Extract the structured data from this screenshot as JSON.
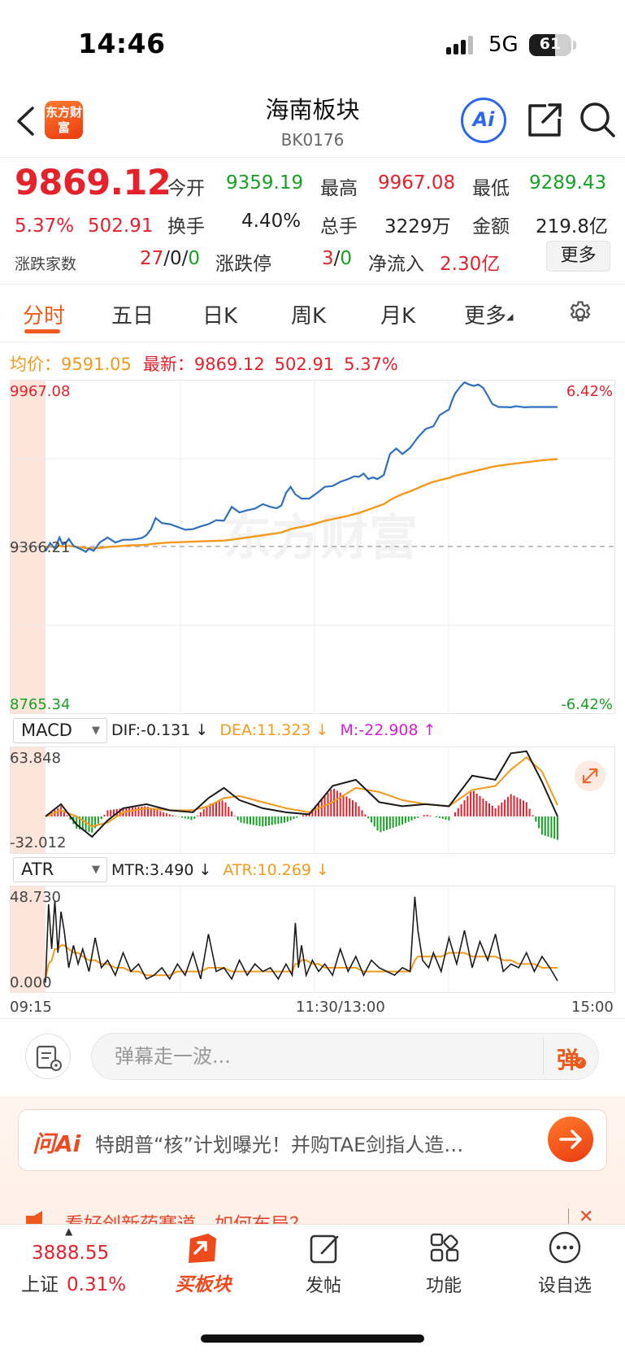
{
  "status_bar": {
    "time": "14:46",
    "network": "5G",
    "battery": "61",
    "battery_level": 0.61
  },
  "header": {
    "title": "海南板块",
    "code": "BK0176",
    "logo_text": "东方财富",
    "ai_label": "Ai"
  },
  "quote": {
    "price": "9869.12",
    "change_pct": "5.37%",
    "change": "502.91",
    "open_label": "今开",
    "open": "9359.19",
    "high_label": "最高",
    "high": "9967.08",
    "low_label": "最低",
    "low": "9289.43",
    "turnover_label": "换手",
    "turnover": "4.40%",
    "volume_label": "总手",
    "volume": "3229万",
    "amount_label": "金额",
    "amount": "219.8亿",
    "breadth_label": "涨跌家数",
    "breadth_up": "27",
    "breadth_flat": "0",
    "breadth_down": "0",
    "sep": "/",
    "limit_label": "涨跌停",
    "limit_up": "3",
    "limit_down": "0",
    "netflow_label": "净流入",
    "netflow": "2.30亿",
    "more_label": "更多"
  },
  "tabs": [
    {
      "label": "分时",
      "active": true
    },
    {
      "label": "五日"
    },
    {
      "label": "日K"
    },
    {
      "label": "周K"
    },
    {
      "label": "月K"
    },
    {
      "label": "更多"
    }
  ],
  "legend": {
    "avg_label": "均价：",
    "avg": "9591.05",
    "last_label": "最新：",
    "last": "9869.12",
    "last_change": "502.91",
    "last_pct": "5.37%"
  },
  "chart_data": [
    {
      "type": "line",
      "title": "",
      "xlabel": "",
      "ylabel": "",
      "x_ticks": [
        "09:15",
        "11:30/13:00",
        "15:00"
      ],
      "y_max_label": "9967.08",
      "y_min_label": "8765.34",
      "y_ref_label": "9366.21",
      "pct_max_label": "6.42%",
      "pct_min_label": "-6.42%",
      "ylim": [
        8765.34,
        9967.08
      ],
      "reference": 9366.21,
      "watermark": "东方财富",
      "x": [
        0,
        6,
        12,
        18,
        22,
        26,
        30,
        36,
        42,
        48,
        52,
        56,
        62,
        70,
        80,
        90,
        100,
        110,
        118,
        124,
        130,
        136,
        142,
        150,
        160,
        170,
        180,
        190,
        200,
        210,
        220,
        230,
        240,
        250,
        260,
        270,
        280,
        290,
        298,
        304,
        310,
        316,
        322,
        330,
        340,
        350,
        360,
        370,
        380,
        390,
        398,
        404,
        410,
        416,
        422,
        428,
        436,
        444,
        452,
        460,
        470,
        480,
        490,
        500,
        508,
        514,
        520,
        524,
        528,
        534,
        540,
        546,
        552,
        558,
        564,
        570,
        576,
        584,
        592,
        600,
        606,
        612,
        618,
        624,
        630,
        636,
        642,
        650,
        660
      ],
      "series": [
        {
          "name": "最新",
          "color": "#2f6fbf",
          "values": [
            9350,
            9380,
            9360,
            9400,
            9375,
            9380,
            9395,
            9370,
            9362,
            9355,
            9348,
            9360,
            9352,
            9382,
            9400,
            9382,
            9392,
            9392,
            9395,
            9398,
            9408,
            9430,
            9470,
            9452,
            9448,
            9438,
            9428,
            9430,
            9440,
            9448,
            9462,
            9460,
            9510,
            9490,
            9498,
            9504,
            9520,
            9510,
            9505,
            9515,
            9560,
            9582,
            9555,
            9540,
            9540,
            9560,
            9582,
            9585,
            9600,
            9610,
            9620,
            9618,
            9630,
            9610,
            9616,
            9610,
            9625,
            9700,
            9720,
            9700,
            9722,
            9760,
            9790,
            9800,
            9840,
            9850,
            9860,
            9892,
            9918,
            9940,
            9958,
            9950,
            9945,
            9950,
            9938,
            9910,
            9880,
            9869,
            9869,
            9868,
            9872,
            9870,
            9868,
            9869,
            9869,
            9869,
            9869,
            9869,
            9869
          ]
        },
        {
          "name": "均价",
          "color": "#f39a1c",
          "values": [
            9366,
            9368,
            9366,
            9370,
            9368,
            9368,
            9370,
            9368,
            9366,
            9364,
            9362,
            9362,
            9361,
            9362,
            9366,
            9368,
            9370,
            9372,
            9372,
            9373,
            9374,
            9376,
            9378,
            9380,
            9382,
            9383,
            9384,
            9385,
            9386,
            9387,
            9388,
            9389,
            9392,
            9396,
            9400,
            9404,
            9408,
            9412,
            9415,
            9418,
            9424,
            9430,
            9434,
            9438,
            9444,
            9452,
            9460,
            9466,
            9472,
            9478,
            9484,
            9488,
            9494,
            9500,
            9506,
            9512,
            9520,
            9534,
            9546,
            9556,
            9566,
            9578,
            9590,
            9600,
            9606,
            9610,
            9614,
            9618,
            9622,
            9626,
            9630,
            9634,
            9638,
            9642,
            9646,
            9650,
            9654,
            9658,
            9661,
            9664,
            9666,
            9668,
            9670,
            9672,
            9674,
            9676,
            9678,
            9680,
            9682
          ]
        }
      ]
    },
    {
      "type": "bar",
      "title": "",
      "indicator": "MACD",
      "labels": {
        "dif": "DIF:-0.131 ↓",
        "dea": "DEA:11.323 ↓",
        "m": "M:-22.908 ↑"
      },
      "y_max_label": "63.848",
      "y_min_label": "-32.012",
      "ylim": [
        -32.012,
        63.848
      ],
      "x": [
        0,
        20,
        40,
        60,
        80,
        100,
        130,
        160,
        190,
        210,
        230,
        250,
        280,
        310,
        340,
        370,
        400,
        430,
        460,
        490,
        520,
        550,
        580,
        600,
        620,
        640,
        660
      ],
      "series": [
        {
          "name": "DIF",
          "color": "#1b1b1b",
          "values": [
            0,
            12,
            -8,
            -20,
            -4,
            8,
            12,
            6,
            4,
            18,
            28,
            16,
            8,
            4,
            2,
            30,
            36,
            14,
            10,
            12,
            10,
            40,
            36,
            62,
            64,
            34,
            0
          ]
        },
        {
          "name": "DEA",
          "color": "#f39a1c",
          "values": [
            0,
            6,
            0,
            -10,
            -6,
            4,
            8,
            6,
            6,
            10,
            18,
            20,
            14,
            8,
            4,
            14,
            28,
            24,
            16,
            12,
            10,
            26,
            30,
            46,
            58,
            44,
            11
          ]
        },
        {
          "name": "M",
          "color": "#e5212c",
          "values": [
            0,
            10,
            -12,
            -16,
            6,
            8,
            10,
            2,
            -4,
            12,
            16,
            -6,
            -10,
            -6,
            4,
            28,
            14,
            -16,
            -8,
            2,
            -4,
            26,
            8,
            22,
            14,
            -18,
            -23
          ]
        }
      ]
    },
    {
      "type": "line",
      "title": "",
      "indicator": "ATR",
      "labels": {
        "mtr": "MTR:3.490 ↓",
        "atr": "ATR:10.269 ↓"
      },
      "y_max_label": "48.730",
      "y_min_label": "0.000",
      "ylim": [
        0,
        48.73
      ],
      "x": [
        0,
        4,
        8,
        12,
        16,
        20,
        24,
        30,
        36,
        42,
        48,
        56,
        64,
        72,
        80,
        90,
        100,
        110,
        120,
        130,
        140,
        150,
        160,
        170,
        180,
        190,
        200,
        210,
        220,
        230,
        240,
        250,
        260,
        270,
        280,
        290,
        300,
        310,
        318,
        322,
        326,
        330,
        336,
        344,
        352,
        360,
        370,
        380,
        390,
        400,
        410,
        420,
        430,
        440,
        450,
        460,
        470,
        476,
        480,
        486,
        494,
        500,
        510,
        520,
        530,
        540,
        550,
        560,
        570,
        580,
        590,
        600,
        610,
        620,
        630,
        640,
        650,
        660
      ],
      "series": [
        {
          "name": "MTR",
          "color": "#1b1b1b",
          "values": [
            2,
            44,
            20,
            46,
            18,
            40,
            30,
            10,
            22,
            12,
            20,
            8,
            26,
            10,
            14,
            6,
            18,
            8,
            12,
            4,
            6,
            10,
            4,
            12,
            6,
            18,
            4,
            28,
            8,
            10,
            4,
            14,
            6,
            12,
            8,
            10,
            4,
            12,
            6,
            34,
            10,
            22,
            6,
            14,
            8,
            12,
            6,
            20,
            8,
            16,
            6,
            14,
            10,
            8,
            6,
            10,
            8,
            48,
            30,
            14,
            10,
            18,
            8,
            26,
            12,
            30,
            10,
            24,
            14,
            28,
            8,
            12,
            10,
            18,
            8,
            16,
            10,
            3
          ]
        },
        {
          "name": "ATR",
          "color": "#f39a1c",
          "values": [
            4,
            12,
            14,
            20,
            20,
            22,
            22,
            20,
            18,
            18,
            16,
            14,
            14,
            12,
            12,
            10,
            10,
            8,
            8,
            6,
            6,
            6,
            6,
            8,
            8,
            8,
            8,
            10,
            10,
            10,
            8,
            8,
            8,
            8,
            8,
            8,
            8,
            8,
            8,
            12,
            12,
            14,
            14,
            12,
            12,
            10,
            10,
            10,
            10,
            10,
            8,
            8,
            8,
            8,
            8,
            8,
            8,
            14,
            16,
            16,
            16,
            16,
            16,
            18,
            18,
            18,
            16,
            16,
            16,
            16,
            14,
            14,
            12,
            12,
            12,
            10,
            10,
            10
          ]
        }
      ]
    }
  ],
  "chat": {
    "placeholder": "弹幕走一波...",
    "send_label": "弹"
  },
  "ai_bar": {
    "brand": "问Ai",
    "text": "特朗普“核”计划曝光！并购TAE剑指人造…"
  },
  "promo": {
    "text": "看好创新药赛道，如何布局？"
  },
  "bottom_nav": {
    "index_value": "3888.55",
    "index_name": "上证",
    "index_change": "0.31%",
    "buy": "买板块",
    "post": "发帖",
    "func": "功能",
    "watch": "设自选"
  },
  "colors": {
    "up": "#e5212c",
    "down": "#17a125",
    "accent": "#ef5a1c",
    "price_line": "#2f6fbf",
    "avg_line": "#f39a1c"
  }
}
